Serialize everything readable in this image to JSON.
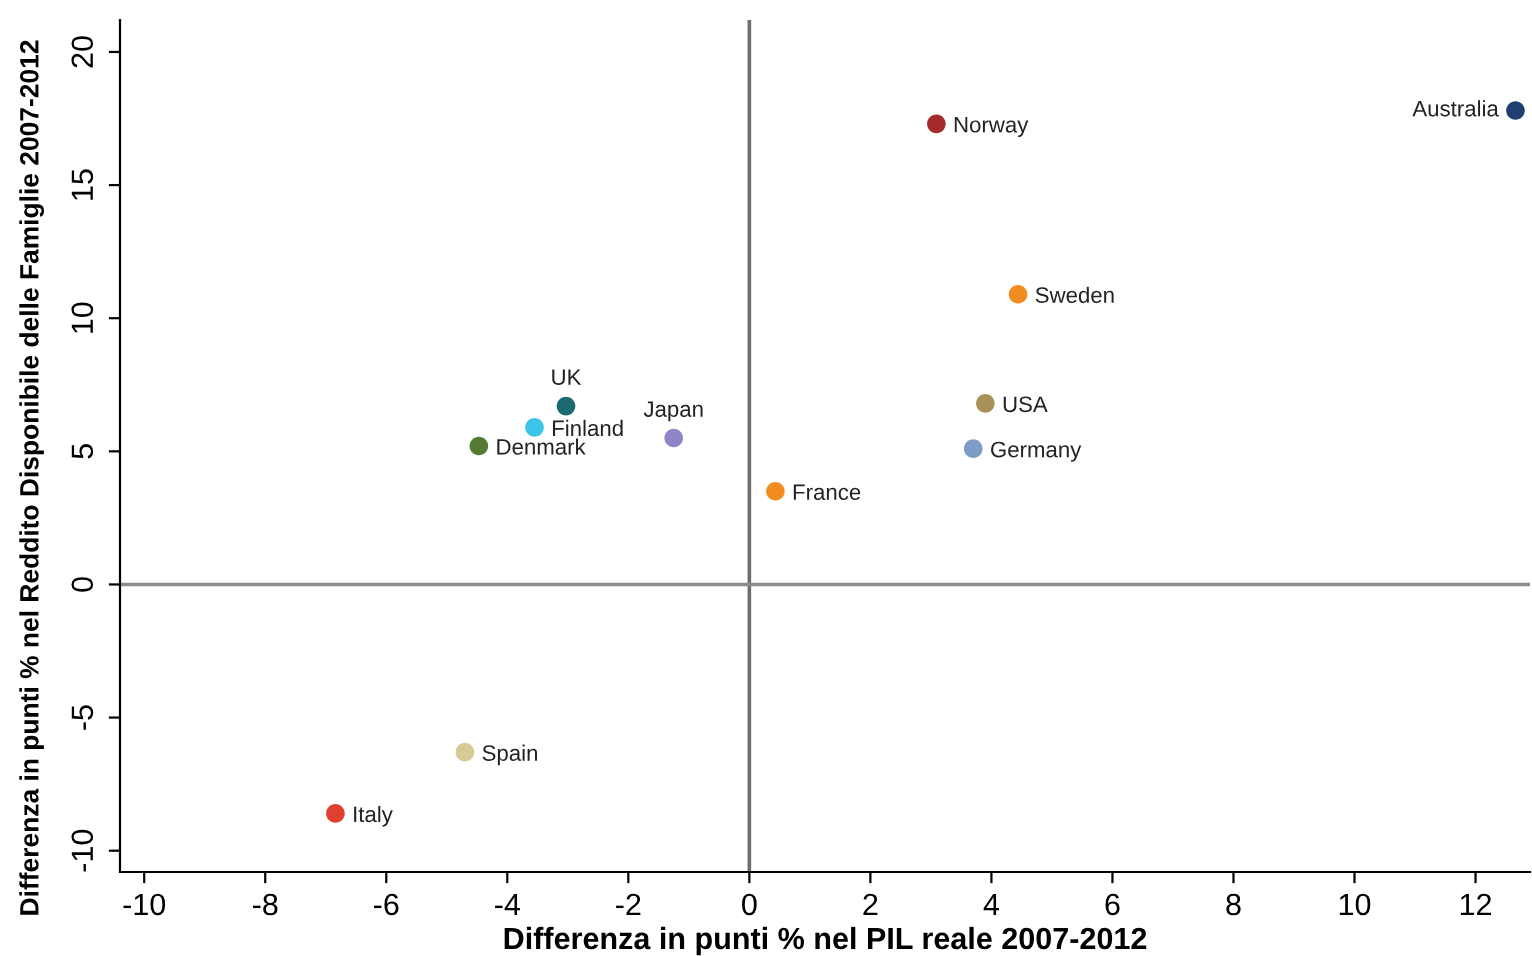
{
  "chart_data": {
    "type": "scatter",
    "xlabel": "Differenza in punti % nel PIL reale 2007-2012",
    "ylabel": "Differenza in punti % nel Reddito Disponibile delle Famiglie 2007-2012",
    "xlim": [
      -10.4,
      12.9
    ],
    "ylim": [
      -10.8,
      21.2
    ],
    "xticks": [
      -10,
      -8,
      -6,
      -4,
      -2,
      0,
      2,
      4,
      6,
      8,
      10,
      12
    ],
    "yticks": [
      -10,
      -5,
      0,
      5,
      10,
      15,
      20
    ],
    "grid": false,
    "legend": false,
    "marker": "circle",
    "ref_lines": [
      {
        "axis": "x",
        "value": 0,
        "color": "#6e6e6e"
      },
      {
        "axis": "y",
        "value": 0,
        "color": "#8c8c8c"
      }
    ],
    "series": [
      {
        "name": "Australia",
        "color": "#1f3f73",
        "x": [
          12.66
        ],
        "values": [
          17.8
        ]
      },
      {
        "name": "Norway",
        "color": "#a52a2a",
        "x": [
          3.09
        ],
        "values": [
          17.3
        ]
      },
      {
        "name": "Sweden",
        "color": "#f28c1e",
        "x": [
          4.44
        ],
        "values": [
          10.9
        ]
      },
      {
        "name": "USA",
        "color": "#a8925a",
        "x": [
          3.9
        ],
        "values": [
          6.8
        ]
      },
      {
        "name": "Germany",
        "color": "#7f9cc8",
        "x": [
          3.7
        ],
        "values": [
          5.1
        ]
      },
      {
        "name": "France",
        "color": "#f28c1e",
        "x": [
          0.43
        ],
        "values": [
          3.5
        ]
      },
      {
        "name": "UK",
        "color": "#1a6a70",
        "x": [
          -3.03
        ],
        "values": [
          6.7
        ]
      },
      {
        "name": "Finland",
        "color": "#3cc3e8",
        "x": [
          -3.55
        ],
        "values": [
          5.9
        ]
      },
      {
        "name": "Denmark",
        "color": "#557a32",
        "x": [
          -4.47
        ],
        "values": [
          5.2
        ]
      },
      {
        "name": "Japan",
        "color": "#8c85c8",
        "x": [
          -1.25
        ],
        "values": [
          5.5
        ]
      },
      {
        "name": "Spain",
        "color": "#d8c995",
        "x": [
          -4.7
        ],
        "values": [
          -6.3
        ]
      },
      {
        "name": "Italy",
        "color": "#e0402f",
        "x": [
          -6.84
        ],
        "values": [
          -8.6
        ]
      }
    ]
  }
}
